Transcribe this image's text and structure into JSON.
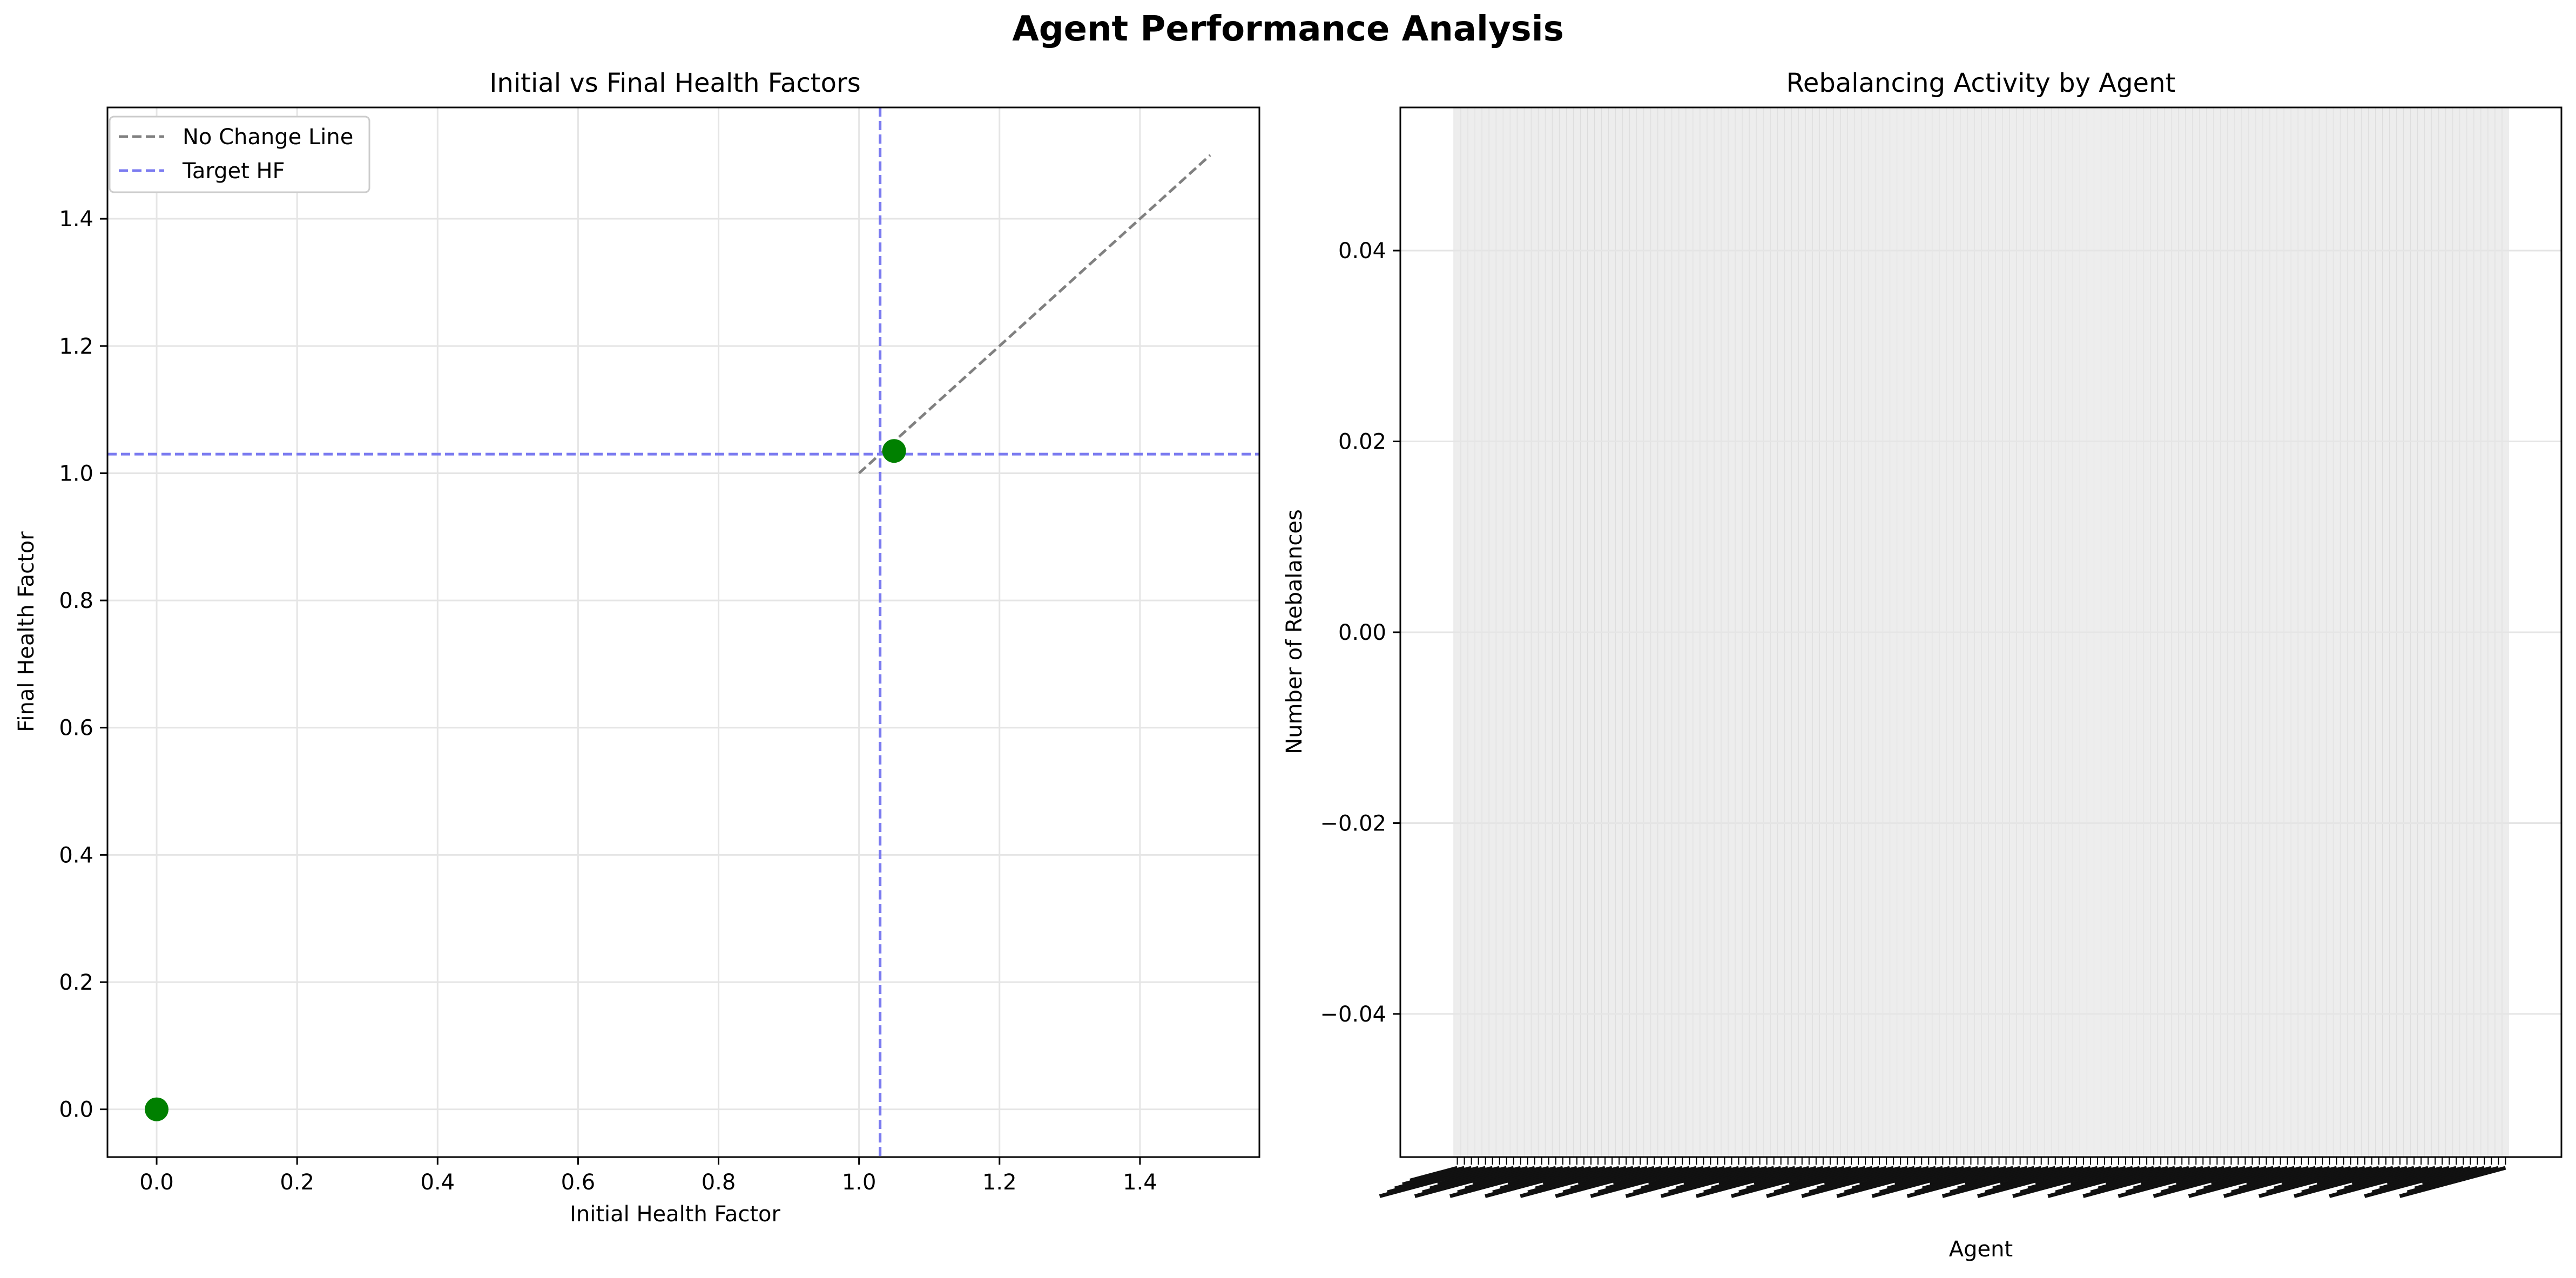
{
  "figure": {
    "suptitle": "Agent Performance Analysis",
    "colors": {
      "background": "#ffffff",
      "grid": "#e5e5e5",
      "axes": "#000000",
      "scatter_point": "#008000",
      "no_change_line": "#808080",
      "target_line": "#7b7bf0",
      "bar_band": "#ededed",
      "bar_edge": "#dcdcdc"
    }
  },
  "chart_data": [
    {
      "type": "scatter",
      "title": "Initial vs Final Health Factors",
      "xlabel": "Initial Health Factor",
      "ylabel": "Final Health Factor",
      "xlim": [
        -0.07,
        1.57
      ],
      "ylim": [
        -0.075,
        1.575
      ],
      "xticks": [
        0.0,
        0.2,
        0.4,
        0.6,
        0.8,
        1.0,
        1.2,
        1.4
      ],
      "yticks": [
        0.0,
        0.2,
        0.4,
        0.6,
        0.8,
        1.0,
        1.2,
        1.4
      ],
      "grid": true,
      "legend_position": "top-left",
      "points": [
        {
          "x": 0.0,
          "y": 0.0
        },
        {
          "x": 1.05,
          "y": 1.035
        }
      ],
      "no_change_line": {
        "label": "No Change Line",
        "from": [
          1.0,
          1.0
        ],
        "to": [
          1.5,
          1.5
        ],
        "style": "dashed"
      },
      "target_hf": {
        "label": "Target HF",
        "value": 1.03,
        "style": "dashed"
      }
    },
    {
      "type": "bar",
      "title": "Rebalancing Activity by Agent",
      "xlabel": "Agent",
      "ylabel": "Number of Rebalances",
      "ylim": [
        -0.055,
        0.055
      ],
      "yticks": [
        -0.04,
        -0.02,
        0.0,
        0.02,
        0.04
      ],
      "grid": true,
      "bar_count": 150,
      "bar_values": 0,
      "xtick_labels_overlapping": true
    }
  ]
}
